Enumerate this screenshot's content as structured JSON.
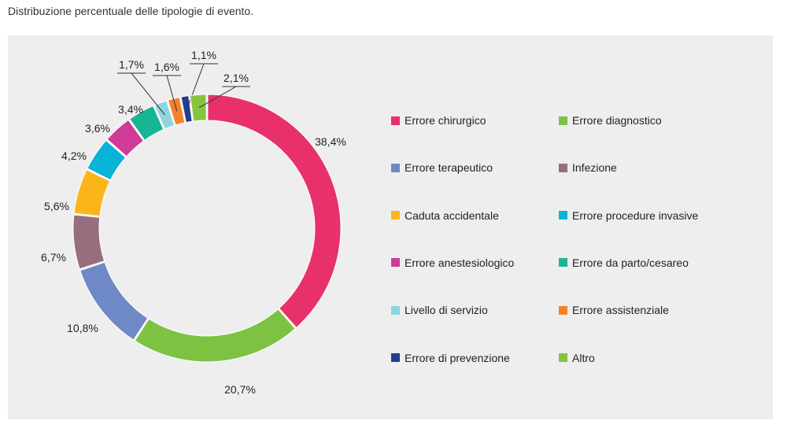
{
  "page": {
    "title": "Distribuzione percentuale delle tipologie di evento."
  },
  "chart_data": {
    "type": "pie",
    "variant": "donut",
    "title": "Distribuzione percentuale delle tipologie di evento.",
    "unit": "%",
    "legend_position": "right",
    "slices": [
      {
        "name": "Errore chirurgico",
        "value": 38.4,
        "label": "38,4%",
        "color": "#e8306a"
      },
      {
        "name": "Errore diagnostico",
        "value": 20.7,
        "label": "20,7%",
        "color": "#7dc242"
      },
      {
        "name": "Errore terapeutico",
        "value": 10.8,
        "label": "10,8%",
        "color": "#6f88c6"
      },
      {
        "name": "Infezione",
        "value": 6.7,
        "label": "6,7%",
        "color": "#966e7e"
      },
      {
        "name": "Caduta accidentale",
        "value": 5.6,
        "label": "5,6%",
        "color": "#fbb51b"
      },
      {
        "name": "Errore procedure invasive",
        "value": 4.2,
        "label": "4,2%",
        "color": "#07b3d6"
      },
      {
        "name": "Errore anestesiologico",
        "value": 3.6,
        "label": "3,6%",
        "color": "#cf3b96"
      },
      {
        "name": "Errore da parto/cesareo",
        "value": 3.4,
        "label": "3,4%",
        "color": "#18b594"
      },
      {
        "name": "Livello di servizio",
        "value": 1.7,
        "label": "1,7%",
        "color": "#8dd6e0"
      },
      {
        "name": "Errore assistenziale",
        "value": 1.6,
        "label": "1,6%",
        "color": "#f4822b"
      },
      {
        "name": "Errore di prevenzione",
        "value": 1.1,
        "label": "1,1%",
        "color": "#263c8e"
      },
      {
        "name": "Altro",
        "value": 2.1,
        "label": "2,1%",
        "color": "#86c440"
      }
    ]
  }
}
